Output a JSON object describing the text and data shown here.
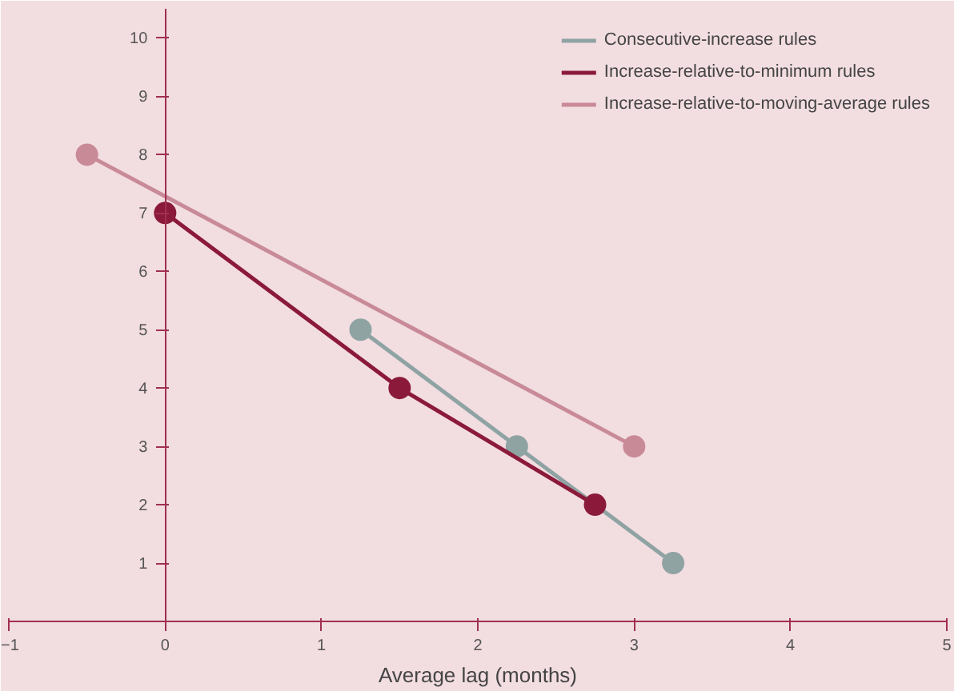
{
  "chart_data": {
    "type": "line",
    "xlabel": "Average lag (months)",
    "xlim": [
      -1,
      5
    ],
    "ylim": [
      0,
      10.5
    ],
    "xticks": [
      -1,
      0,
      1,
      2,
      3,
      4,
      5
    ],
    "yticks": [
      1,
      2,
      3,
      4,
      5,
      6,
      7,
      8,
      9,
      10
    ],
    "grid": false,
    "legend": "top right",
    "marker": "circle",
    "line_style": "solid",
    "series": [
      {
        "name": "Consecutive-increase rules",
        "color": "#8fa3a3",
        "x": [
          1.25,
          2.25,
          3.25
        ],
        "values": [
          5,
          3,
          1
        ]
      },
      {
        "name": "Increase-relative-to-minimum rules",
        "color": "#8b1a3a",
        "x": [
          0,
          1.5,
          2.75
        ],
        "values": [
          7,
          4,
          2
        ]
      },
      {
        "name": "Increase-relative-to-moving-average rules",
        "color": "#c98a98",
        "x": [
          -0.5,
          3
        ],
        "values": [
          8,
          3
        ]
      }
    ]
  }
}
